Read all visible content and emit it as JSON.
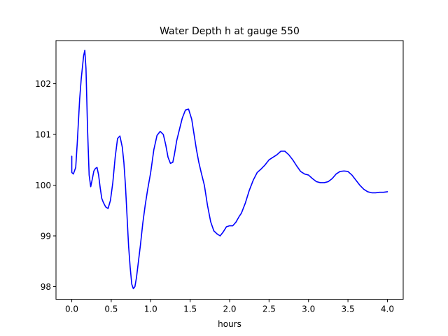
{
  "chart_data": {
    "type": "line",
    "title": "Water Depth h at gauge 550",
    "xlabel": "hours",
    "ylabel": "",
    "xlim": [
      -0.2,
      4.2
    ],
    "ylim": [
      97.75,
      102.85
    ],
    "xticks": [
      0.0,
      0.5,
      1.0,
      1.5,
      2.0,
      2.5,
      3.0,
      3.5,
      4.0
    ],
    "xtick_labels": [
      "0.0",
      "0.5",
      "1.0",
      "1.5",
      "2.0",
      "2.5",
      "3.0",
      "3.5",
      "4.0"
    ],
    "yticks": [
      98,
      99,
      100,
      101,
      102
    ],
    "ytick_labels": [
      "98",
      "99",
      "100",
      "101",
      "102"
    ],
    "grid": false,
    "legend": "none",
    "series": [
      {
        "color": "#0000ff",
        "x": [
          0.0,
          0.0,
          0.02,
          0.05,
          0.07,
          0.1,
          0.12,
          0.15,
          0.165,
          0.18,
          0.2,
          0.22,
          0.24,
          0.26,
          0.28,
          0.3,
          0.32,
          0.34,
          0.36,
          0.38,
          0.4,
          0.43,
          0.46,
          0.49,
          0.52,
          0.55,
          0.58,
          0.61,
          0.64,
          0.66,
          0.68,
          0.7,
          0.72,
          0.74,
          0.76,
          0.78,
          0.8,
          0.82,
          0.845,
          0.87,
          0.9,
          0.93,
          0.96,
          1.0,
          1.04,
          1.08,
          1.12,
          1.16,
          1.19,
          1.22,
          1.25,
          1.28,
          1.3,
          1.33,
          1.36,
          1.4,
          1.44,
          1.48,
          1.52,
          1.55,
          1.58,
          1.61,
          1.64,
          1.68,
          1.72,
          1.76,
          1.8,
          1.84,
          1.88,
          1.92,
          1.96,
          2.0,
          2.04,
          2.08,
          2.12,
          2.15,
          2.2,
          2.25,
          2.3,
          2.35,
          2.4,
          2.45,
          2.5,
          2.55,
          2.6,
          2.65,
          2.7,
          2.75,
          2.8,
          2.85,
          2.9,
          2.95,
          3.0,
          3.05,
          3.1,
          3.15,
          3.2,
          3.25,
          3.3,
          3.35,
          3.4,
          3.45,
          3.5,
          3.55,
          3.6,
          3.65,
          3.7,
          3.75,
          3.8,
          3.85,
          3.9,
          3.95,
          4.0
        ],
        "y": [
          100.57,
          100.25,
          100.22,
          100.35,
          100.85,
          101.7,
          102.1,
          102.55,
          102.66,
          102.3,
          101.1,
          100.2,
          99.97,
          100.12,
          100.28,
          100.33,
          100.35,
          100.2,
          99.95,
          99.74,
          99.66,
          99.57,
          99.54,
          99.7,
          100.05,
          100.55,
          100.92,
          100.97,
          100.75,
          100.45,
          100.0,
          99.4,
          98.8,
          98.38,
          98.05,
          97.96,
          98.0,
          98.18,
          98.5,
          98.82,
          99.25,
          99.6,
          99.9,
          100.25,
          100.7,
          100.98,
          101.06,
          101.0,
          100.8,
          100.55,
          100.43,
          100.45,
          100.6,
          100.88,
          101.07,
          101.32,
          101.48,
          101.5,
          101.3,
          101.0,
          100.7,
          100.45,
          100.25,
          100.0,
          99.6,
          99.28,
          99.1,
          99.04,
          99.0,
          99.08,
          99.18,
          99.2,
          99.2,
          99.27,
          99.38,
          99.45,
          99.65,
          99.9,
          100.1,
          100.25,
          100.32,
          100.4,
          100.5,
          100.55,
          100.6,
          100.67,
          100.67,
          100.6,
          100.5,
          100.38,
          100.27,
          100.22,
          100.2,
          100.13,
          100.07,
          100.05,
          100.05,
          100.07,
          100.13,
          100.22,
          100.27,
          100.28,
          100.27,
          100.2,
          100.1,
          100.0,
          99.92,
          99.87,
          99.85,
          99.85,
          99.86,
          99.86,
          99.87
        ]
      }
    ]
  }
}
